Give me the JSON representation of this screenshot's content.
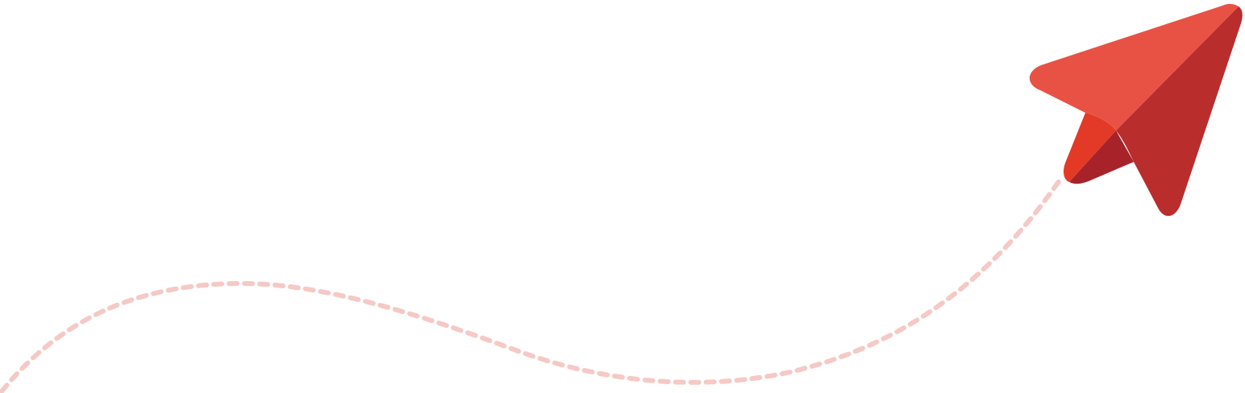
{
  "illustration": {
    "icon": "paper-plane-icon",
    "colors": {
      "background": "#ffffff",
      "plane_top": "#E85244",
      "plane_right": "#B92D2D",
      "plane_inner_left": "#E33A27",
      "plane_inner_shadow": "#A8222A",
      "trail": "#F5C9C6"
    }
  }
}
